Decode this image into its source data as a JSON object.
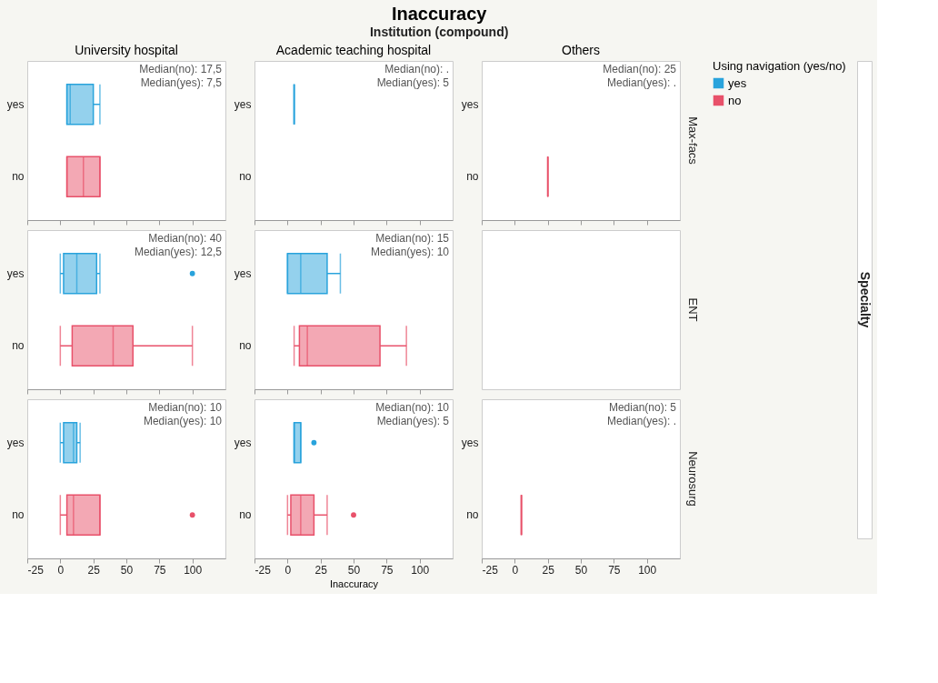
{
  "chart_data": [
    {
      "type": "other",
      "title": "Inaccuracy",
      "subtitle": "Institution (compound)",
      "ylabel": "Specialty"
    },
    {
      "type": "box",
      "orientation": "horizontal",
      "title": "University hospital",
      "categories": [
        "yes",
        "no"
      ],
      "xlim": [
        -25,
        125
      ],
      "xticks": [
        -25,
        0,
        25,
        50,
        75,
        100
      ],
      "tick_labels": "y",
      "annotations": [
        "Median(no): 17,5",
        "Median(yes): 7,5"
      ],
      "series": [
        {
          "color": "#29a3dc",
          "boxes": [
            {
              "low": 5,
              "q1": 5,
              "median": 7.5,
              "q3": 25,
              "high": 30
            },
            null
          ]
        },
        {
          "color": "#e8516a",
          "boxes": [
            null,
            {
              "low": 5,
              "q1": 5,
              "median": 17.5,
              "q3": 30,
              "high": 30
            }
          ]
        }
      ]
    },
    {
      "type": "box",
      "orientation": "horizontal",
      "title": "Academic teaching hospital",
      "categories": [
        "yes",
        "no"
      ],
      "xlim": [
        -25,
        125
      ],
      "xticks": [
        -25,
        0,
        25,
        50,
        75,
        100
      ],
      "tick_labels": "y",
      "annotations": [
        "Median(no): .",
        "Median(yes): 5"
      ],
      "series": [
        {
          "color": "#29a3dc",
          "boxes": [
            {
              "low": 5,
              "q1": 5,
              "median": 5,
              "q3": 5,
              "high": 5
            },
            null
          ]
        },
        {
          "color": "#e8516a",
          "boxes": [
            null,
            null
          ]
        }
      ]
    },
    {
      "type": "box",
      "orientation": "horizontal",
      "title": "Others",
      "y2label": "Max-facs",
      "categories": [
        "yes",
        "no"
      ],
      "xlim": [
        -25,
        125
      ],
      "xticks": [
        -25,
        0,
        25,
        50,
        75,
        100
      ],
      "tick_labels": "y",
      "annotations": [
        "Median(no): 25",
        "Median(yes): ."
      ],
      "legend": "right",
      "legend_title": "Using navigation (yes/no)",
      "series": [
        {
          "name": "yes",
          "color": "#29a3dc",
          "boxes": [
            null,
            null
          ]
        },
        {
          "name": "no",
          "color": "#e8516a",
          "boxes": [
            null,
            {
              "low": 25,
              "q1": 25,
              "median": 25,
              "q3": 25,
              "high": 25
            }
          ]
        }
      ]
    },
    {
      "type": "box",
      "orientation": "horizontal",
      "categories": [
        "yes",
        "no"
      ],
      "xlim": [
        -25,
        125
      ],
      "xticks": [
        -25,
        0,
        25,
        50,
        75,
        100
      ],
      "tick_labels": "y",
      "annotations": [
        "Median(no): 40",
        "Median(yes): 12,5"
      ],
      "series": [
        {
          "color": "#29a3dc",
          "boxes": [
            {
              "low": 0,
              "q1": 2.5,
              "median": 12.5,
              "q3": 27.5,
              "high": 30,
              "outliers": [
                100
              ]
            },
            null
          ]
        },
        {
          "color": "#e8516a",
          "boxes": [
            null,
            {
              "low": 0,
              "q1": 9,
              "median": 40,
              "q3": 55,
              "high": 100
            }
          ]
        }
      ]
    },
    {
      "type": "box",
      "orientation": "horizontal",
      "categories": [
        "yes",
        "no"
      ],
      "xlim": [
        -25,
        125
      ],
      "xticks": [
        -25,
        0,
        25,
        50,
        75,
        100
      ],
      "annotations": [
        "Median(no): 15",
        "Median(yes): 10"
      ],
      "tick_labels": "y",
      "series": [
        {
          "color": "#29a3dc",
          "boxes": [
            {
              "low": 0,
              "q1": 0,
              "median": 10,
              "q3": 30,
              "high": 40
            },
            null
          ]
        },
        {
          "color": "#e8516a",
          "boxes": [
            null,
            {
              "low": 5,
              "q1": 9,
              "median": 15,
              "q3": 70,
              "high": 90
            }
          ]
        }
      ]
    },
    {
      "type": "other",
      "y2label": "ENT"
    },
    {
      "type": "box",
      "orientation": "horizontal",
      "categories": [
        "yes",
        "no"
      ],
      "xlim": [
        -25,
        125
      ],
      "xticks": [
        -25,
        0,
        25,
        50,
        75,
        100
      ],
      "annotations": [
        "Median(no): 10",
        "Median(yes): 10"
      ],
      "series": [
        {
          "color": "#29a3dc",
          "boxes": [
            {
              "low": 0,
              "q1": 2.5,
              "median": 10,
              "q3": 12.5,
              "high": 15
            },
            null
          ]
        },
        {
          "color": "#e8516a",
          "boxes": [
            null,
            {
              "low": 0,
              "q1": 5,
              "median": 10,
              "q3": 30,
              "high": 30,
              "outliers": [
                100
              ]
            }
          ]
        }
      ]
    },
    {
      "type": "box",
      "orientation": "horizontal",
      "xlabel": "Inaccuracy",
      "categories": [
        "yes",
        "no"
      ],
      "xlim": [
        -25,
        125
      ],
      "xticks": [
        -25,
        0,
        25,
        50,
        75,
        100
      ],
      "annotations": [
        "Median(no): 10",
        "Median(yes): 5"
      ],
      "series": [
        {
          "color": "#29a3dc",
          "boxes": [
            {
              "low": 5,
              "q1": 5,
              "median": 5,
              "q3": 10,
              "high": 10,
              "outliers": [
                20
              ]
            },
            null
          ]
        },
        {
          "color": "#e8516a",
          "boxes": [
            null,
            {
              "low": 0,
              "q1": 2.5,
              "median": 10,
              "q3": 20,
              "high": 30,
              "outliers": [
                50
              ]
            }
          ]
        }
      ]
    },
    {
      "type": "box",
      "orientation": "horizontal",
      "y2label": "Neurosurg",
      "categories": [
        "yes",
        "no"
      ],
      "xlim": [
        -25,
        125
      ],
      "xticks": [
        -25,
        0,
        25,
        50,
        75,
        100
      ],
      "annotations": [
        "Median(no): 5",
        "Median(yes): ."
      ],
      "series": [
        {
          "color": "#29a3dc",
          "boxes": [
            null,
            null
          ]
        },
        {
          "color": "#e8516a",
          "boxes": [
            null,
            {
              "low": 5,
              "q1": 5,
              "median": 5,
              "q3": 5,
              "high": 5
            }
          ]
        }
      ]
    }
  ]
}
